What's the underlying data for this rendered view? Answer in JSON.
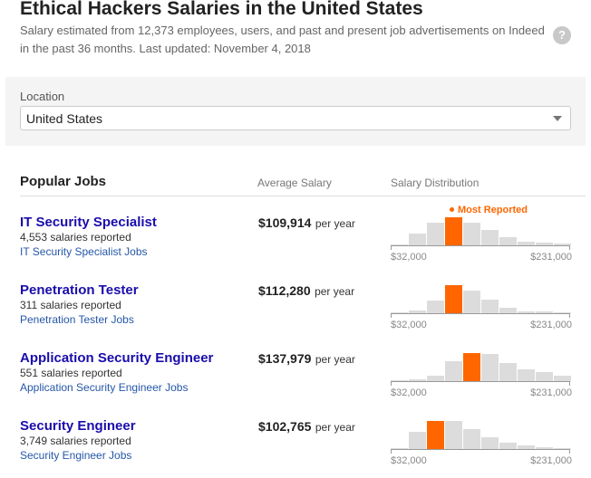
{
  "header": {
    "title": "Ethical Hackers Salaries in the United States",
    "subtitle": "Salary estimated from 12,373 employees, users, and past and present job advertisements on Indeed in the past 36 months. Last updated: November 4, 2018",
    "help_glyph": "?"
  },
  "location": {
    "label": "Location",
    "value": "United States"
  },
  "jobs_table": {
    "title": "Popular Jobs",
    "col_average": "Average Salary",
    "col_distribution": "Salary Distribution",
    "most_reported_label": "Most Reported",
    "axis_min": "$32,000",
    "axis_max": "$231,000",
    "peak_color": "#ff6600",
    "bar_color": "#dcdcdc",
    "rows": [
      {
        "title": "IT Security Specialist",
        "count": "4,553 salaries reported",
        "link": "IT Security Specialist Jobs",
        "salary": "$109,914",
        "period": "per year",
        "histogram": [
          0.03,
          0.42,
          0.8,
          1.0,
          0.82,
          0.55,
          0.3,
          0.14,
          0.1,
          0.05
        ],
        "peak_index": 3
      },
      {
        "title": "Penetration Tester",
        "count": "311 salaries reported",
        "link": "Penetration Tester Jobs",
        "salary": "$112,280",
        "period": "per year",
        "histogram": [
          0.03,
          0.1,
          0.45,
          1.0,
          0.82,
          0.48,
          0.2,
          0.08,
          0.05,
          0.03
        ],
        "peak_index": 3
      },
      {
        "title": "Application Security Engineer",
        "count": "551 salaries reported",
        "link": "Application Security Engineer Jobs",
        "salary": "$137,979",
        "period": "per year",
        "histogram": [
          0.02,
          0.05,
          0.2,
          0.7,
          1.0,
          0.97,
          0.64,
          0.42,
          0.32,
          0.18
        ],
        "peak_index": 4
      },
      {
        "title": "Security Engineer",
        "count": "3,749 salaries reported",
        "link": "Security Engineer Jobs",
        "salary": "$102,765",
        "period": "per year",
        "histogram": [
          0.04,
          0.62,
          1.0,
          1.0,
          0.7,
          0.42,
          0.24,
          0.14,
          0.07,
          0.03
        ],
        "peak_index": 2
      }
    ]
  }
}
